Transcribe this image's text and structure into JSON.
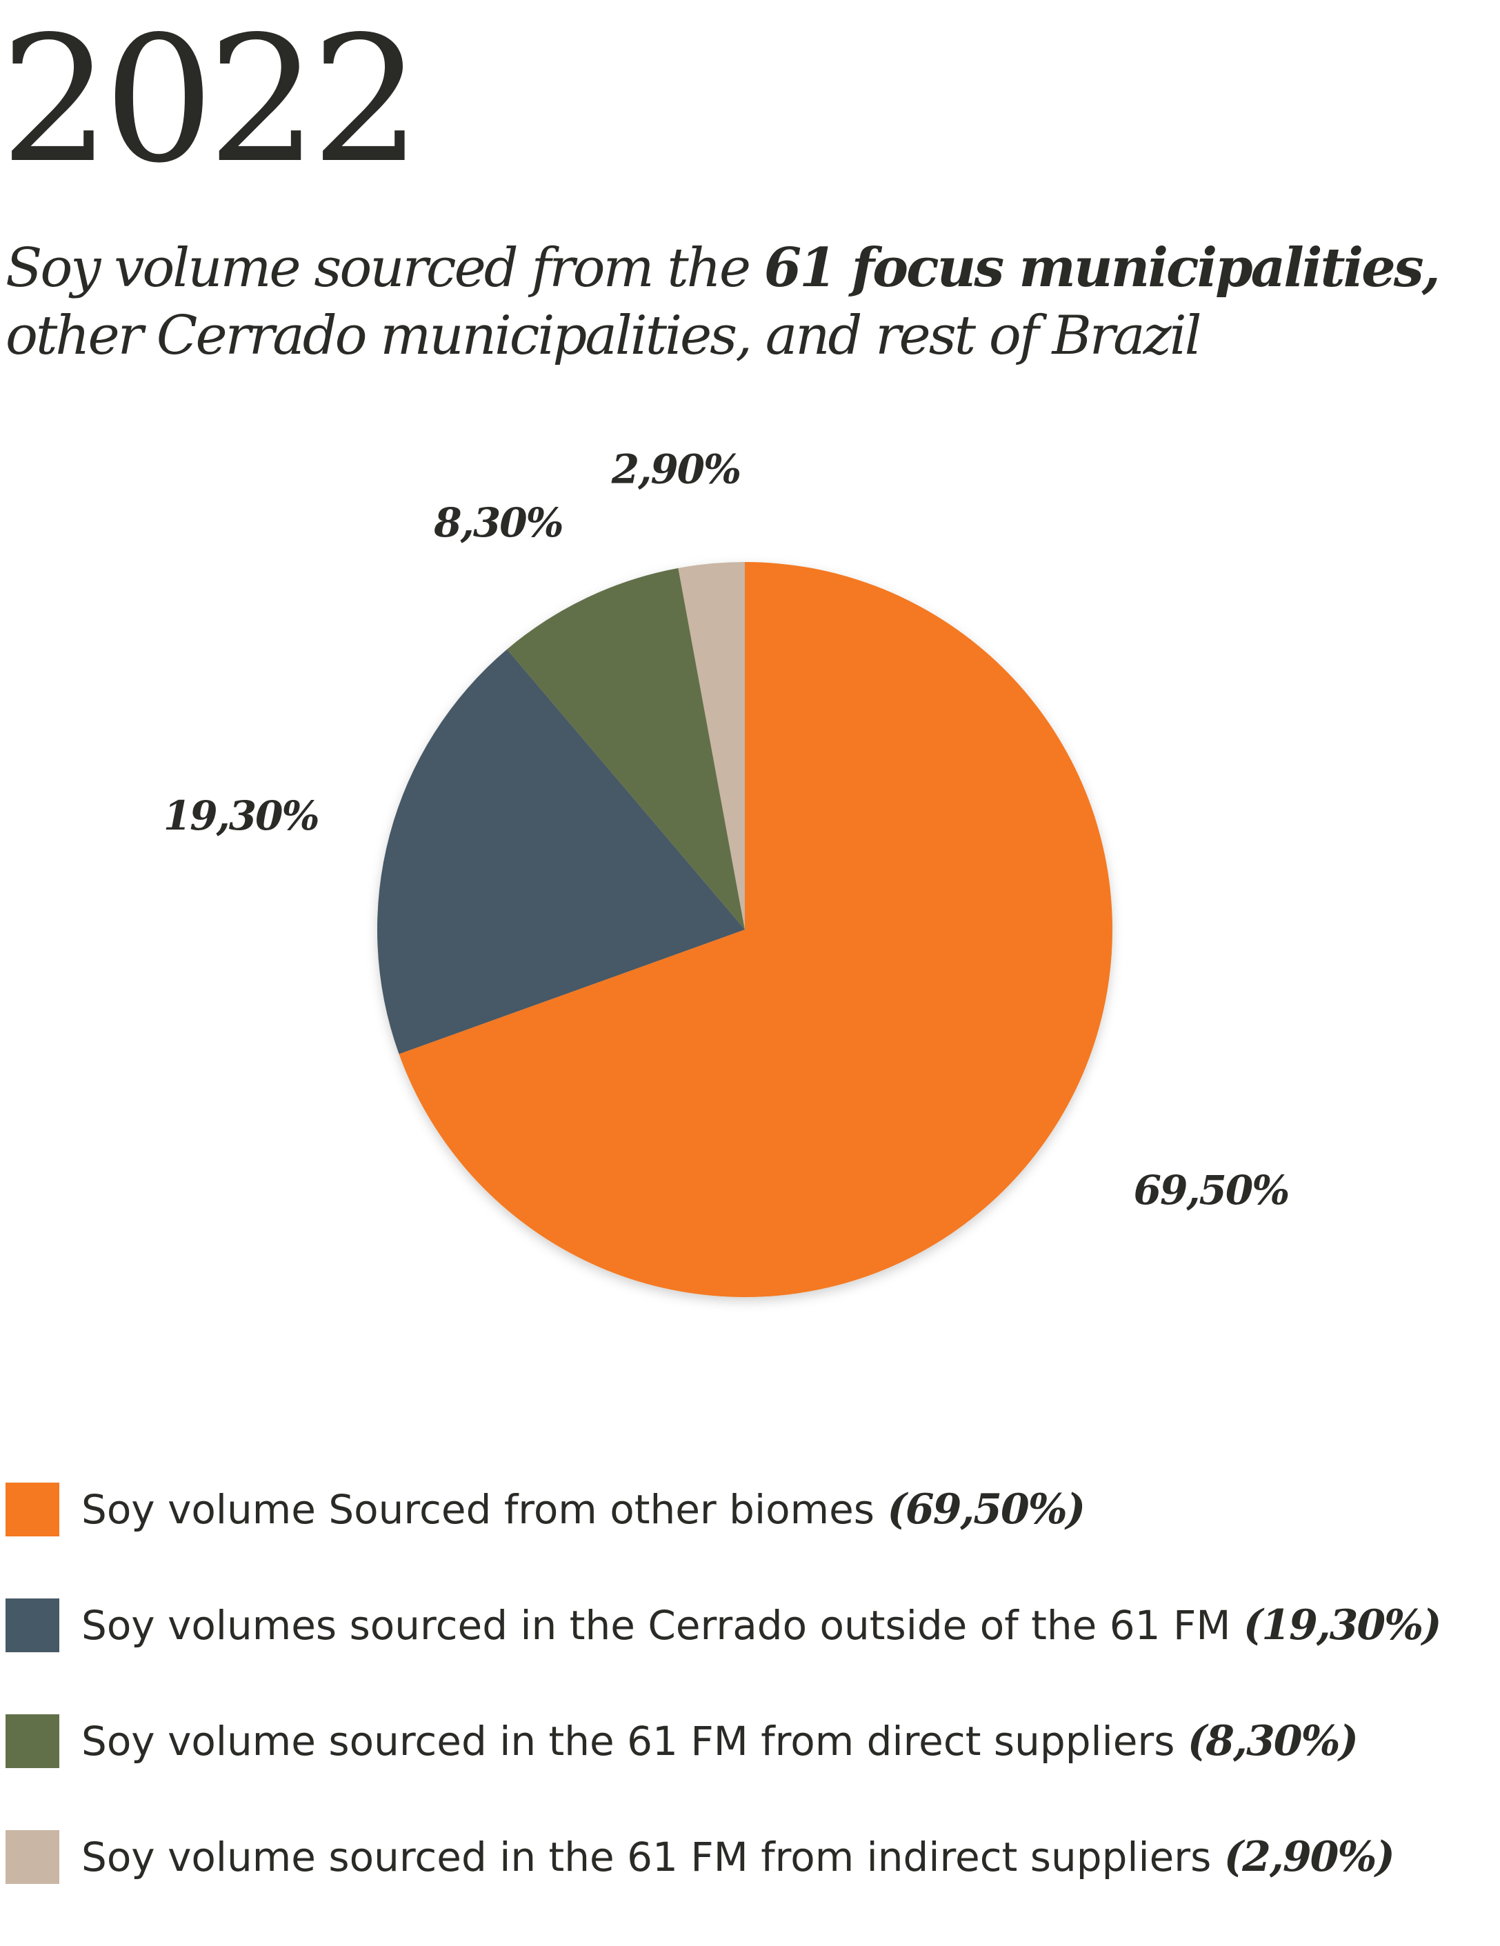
{
  "chart_data": {
    "type": "pie",
    "title": "2022",
    "subtitle_parts": [
      {
        "text": "Soy volume sourced from the ",
        "bold": false
      },
      {
        "text": "61 focus municipalities,",
        "bold": true
      },
      {
        "text": " other Cerrado municipalities, and rest of Brazil",
        "bold": false
      }
    ],
    "slices": [
      {
        "name": "Soy volume Sourced from other biomes",
        "value": 69.5,
        "label": "69,50%",
        "legend_label": "(69,50%)",
        "color": "#f47920"
      },
      {
        "name": "Soy volumes sourced in the Cerrado outside of the 61 FM",
        "value": 19.3,
        "label": "19,30%",
        "legend_label": "(19,30%)",
        "color": "#465966"
      },
      {
        "name": "Soy volume sourced in the 61 FM from direct suppliers",
        "value": 8.3,
        "label": "8,30%",
        "legend_label": "(8,30%)",
        "color": "#627049"
      },
      {
        "name": "Soy volume sourced in the 61 FM from indirect suppliers",
        "value": 2.9,
        "label": "2,90%",
        "legend_label": "(2,90%)",
        "color": "#c9b6a4"
      }
    ],
    "legend_position": "bottom"
  }
}
